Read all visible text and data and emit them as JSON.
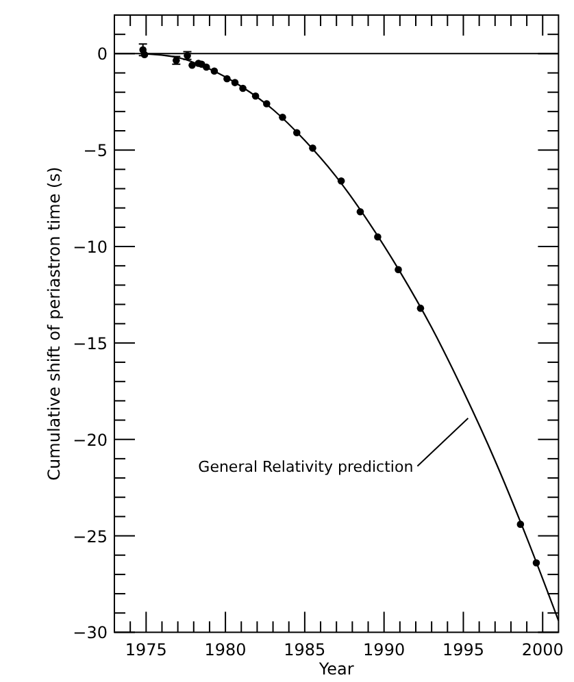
{
  "chart_data": {
    "type": "scatter",
    "xlabel": "Year",
    "ylabel": "Cumulative shift of periastron time (s)",
    "xlim": [
      1973,
      2001
    ],
    "ylim": [
      -30,
      2
    ],
    "xticks": [
      {
        "value": 1973,
        "label": null
      },
      {
        "value": 1974,
        "label": null
      },
      1975,
      {
        "value": 1976,
        "label": null
      },
      {
        "value": 1977,
        "label": null
      },
      {
        "value": 1978,
        "label": null
      },
      {
        "value": 1979,
        "label": null
      },
      1980,
      {
        "value": 1981,
        "label": null
      },
      {
        "value": 1982,
        "label": null
      },
      {
        "value": 1983,
        "label": null
      },
      {
        "value": 1984,
        "label": null
      },
      1985,
      {
        "value": 1986,
        "label": null
      },
      {
        "value": 1987,
        "label": null
      },
      {
        "value": 1988,
        "label": null
      },
      {
        "value": 1989,
        "label": null
      },
      1990,
      {
        "value": 1991,
        "label": null
      },
      {
        "value": 1992,
        "label": null
      },
      {
        "value": 1993,
        "label": null
      },
      {
        "value": 1994,
        "label": null
      },
      1995,
      {
        "value": 1996,
        "label": null
      },
      {
        "value": 1997,
        "label": null
      },
      {
        "value": 1998,
        "label": null
      },
      {
        "value": 1999,
        "label": null
      },
      2000
    ],
    "yticks": [
      -30,
      {
        "value": -29,
        "label": null
      },
      {
        "value": -28,
        "label": null
      },
      {
        "value": -27,
        "label": null
      },
      {
        "value": -26,
        "label": null
      },
      -25,
      {
        "value": -24,
        "label": null
      },
      {
        "value": -23,
        "label": null
      },
      {
        "value": -22,
        "label": null
      },
      {
        "value": -21,
        "label": null
      },
      -20,
      {
        "value": -19,
        "label": null
      },
      {
        "value": -18,
        "label": null
      },
      {
        "value": -17,
        "label": null
      },
      {
        "value": -16,
        "label": null
      },
      -15,
      {
        "value": -14,
        "label": null
      },
      {
        "value": -13,
        "label": null
      },
      {
        "value": -12,
        "label": null
      },
      {
        "value": -11,
        "label": null
      },
      -10,
      {
        "value": -9,
        "label": null
      },
      {
        "value": -8,
        "label": null
      },
      {
        "value": -7,
        "label": null
      },
      {
        "value": -6,
        "label": null
      },
      -5,
      {
        "value": -4,
        "label": null
      },
      {
        "value": -3,
        "label": null
      },
      {
        "value": -2,
        "label": null
      },
      {
        "value": -1,
        "label": null
      },
      0,
      {
        "value": 1,
        "label": null
      }
    ],
    "grid": false,
    "marker": "circle",
    "ref_lines": [
      {
        "axis": "y",
        "value": 0,
        "color": "#000000"
      }
    ],
    "annotations": [
      {
        "text": "General Relativity prediction",
        "x": 1995.3,
        "y": -18.9
      }
    ],
    "series": [
      {
        "color": "#000000",
        "x": [
          1974.8,
          1974.9,
          1976.9,
          1977.6,
          1977.9,
          1978.3,
          1978.5,
          1978.8,
          1979.3,
          1980.1,
          1980.6,
          1981.1,
          1981.9,
          1982.6,
          1983.6,
          1984.5,
          1985.5,
          1987.3,
          1988.5,
          1989.6,
          1990.9,
          1992.3,
          1998.6,
          1999.6
        ],
        "values": [
          0.2,
          -0.05,
          -0.35,
          -0.1,
          -0.6,
          -0.5,
          -0.55,
          -0.7,
          -0.9,
          -1.3,
          -1.5,
          -1.8,
          -2.2,
          -2.6,
          -3.3,
          -4.1,
          -4.9,
          -6.6,
          -8.2,
          -9.5,
          -11.2,
          -13.2,
          -24.4,
          -26.4
        ],
        "errors": [
          0.3,
          null,
          0.2,
          0.2,
          null,
          null,
          null,
          null,
          null,
          null,
          null,
          null,
          null,
          null,
          null,
          null,
          null,
          null,
          null,
          null,
          null,
          null,
          null,
          null
        ]
      },
      {
        "type": "line",
        "color": "#000000",
        "marker": "none",
        "x": [
          1974.8,
          1977,
          1979,
          1981,
          1983,
          1985,
          1987,
          1989,
          1991,
          1993,
          1995,
          1997,
          1999,
          2001
        ],
        "values": [
          0,
          -0.2,
          -0.8,
          -1.7,
          -2.9,
          -4.5,
          -6.4,
          -8.7,
          -11.3,
          -14.2,
          -17.5,
          -21.1,
          -25.1,
          -29.4
        ]
      }
    ]
  }
}
